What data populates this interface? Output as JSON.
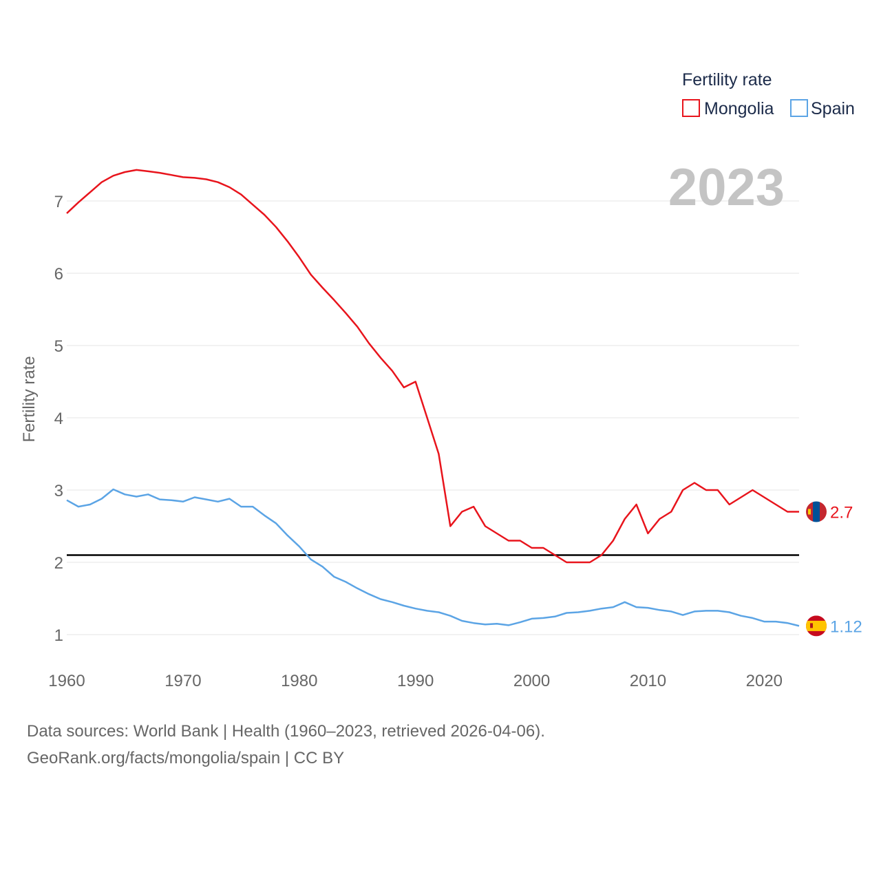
{
  "chart_data": {
    "type": "line",
    "legend_title": "Fertility rate",
    "year_label": "2023",
    "ylabel": "Fertility rate",
    "xlabel": "",
    "xlim": [
      1960,
      2023
    ],
    "ylim": [
      0.5,
      7.6
    ],
    "x_ticks": [
      1960,
      1970,
      1980,
      1990,
      2000,
      2010,
      2020
    ],
    "y_ticks": [
      1,
      2,
      3,
      4,
      5,
      6,
      7
    ],
    "reference_line": {
      "value": 2.1,
      "color": "#000000"
    },
    "legend_position": "top-right",
    "x": [
      1960,
      1961,
      1962,
      1963,
      1964,
      1965,
      1966,
      1967,
      1968,
      1969,
      1970,
      1971,
      1972,
      1973,
      1974,
      1975,
      1976,
      1977,
      1978,
      1979,
      1980,
      1981,
      1982,
      1983,
      1984,
      1985,
      1986,
      1987,
      1988,
      1989,
      1990,
      1991,
      1992,
      1993,
      1994,
      1995,
      1996,
      1997,
      1998,
      1999,
      2000,
      2001,
      2002,
      2003,
      2004,
      2005,
      2006,
      2007,
      2008,
      2009,
      2010,
      2011,
      2012,
      2013,
      2014,
      2015,
      2016,
      2017,
      2018,
      2019,
      2020,
      2021,
      2022,
      2023
    ],
    "series": [
      {
        "name": "Mongolia",
        "color": "#e8141c",
        "end_label": "2.7",
        "flag": "mongolia-flag-icon",
        "values": [
          6.83,
          6.98,
          7.12,
          7.26,
          7.35,
          7.4,
          7.43,
          7.41,
          7.39,
          7.36,
          7.33,
          7.32,
          7.3,
          7.26,
          7.19,
          7.09,
          6.95,
          6.81,
          6.64,
          6.44,
          6.22,
          5.98,
          5.8,
          5.63,
          5.45,
          5.26,
          5.03,
          4.83,
          4.65,
          4.42,
          4.5,
          4.0,
          3.5,
          2.5,
          2.7,
          2.77,
          2.5,
          2.4,
          2.3,
          2.3,
          2.2,
          2.2,
          2.1,
          2.0,
          2.0,
          2.0,
          2.1,
          2.3,
          2.6,
          2.8,
          2.4,
          2.6,
          2.7,
          3.0,
          3.1,
          3.0,
          3.0,
          2.8,
          2.9,
          3.0,
          2.9,
          2.8,
          2.7,
          2.7
        ]
      },
      {
        "name": "Spain",
        "color": "#5ba4e5",
        "end_label": "1.12",
        "flag": "spain-flag-icon",
        "values": [
          2.86,
          2.77,
          2.8,
          2.88,
          3.01,
          2.94,
          2.91,
          2.94,
          2.87,
          2.86,
          2.84,
          2.9,
          2.87,
          2.84,
          2.88,
          2.77,
          2.77,
          2.65,
          2.54,
          2.37,
          2.22,
          2.04,
          1.94,
          1.8,
          1.73,
          1.64,
          1.56,
          1.49,
          1.45,
          1.4,
          1.36,
          1.33,
          1.31,
          1.26,
          1.19,
          1.16,
          1.14,
          1.15,
          1.13,
          1.17,
          1.22,
          1.23,
          1.25,
          1.3,
          1.31,
          1.33,
          1.36,
          1.38,
          1.45,
          1.38,
          1.37,
          1.34,
          1.32,
          1.27,
          1.32,
          1.33,
          1.33,
          1.31,
          1.26,
          1.23,
          1.18,
          1.18,
          1.16,
          1.12
        ]
      }
    ]
  },
  "footer": {
    "line1": "Data sources: World Bank | Health (1960–2023, retrieved 2026-04-06).",
    "line2": "GeoRank.org/facts/mongolia/spain | CC BY"
  }
}
